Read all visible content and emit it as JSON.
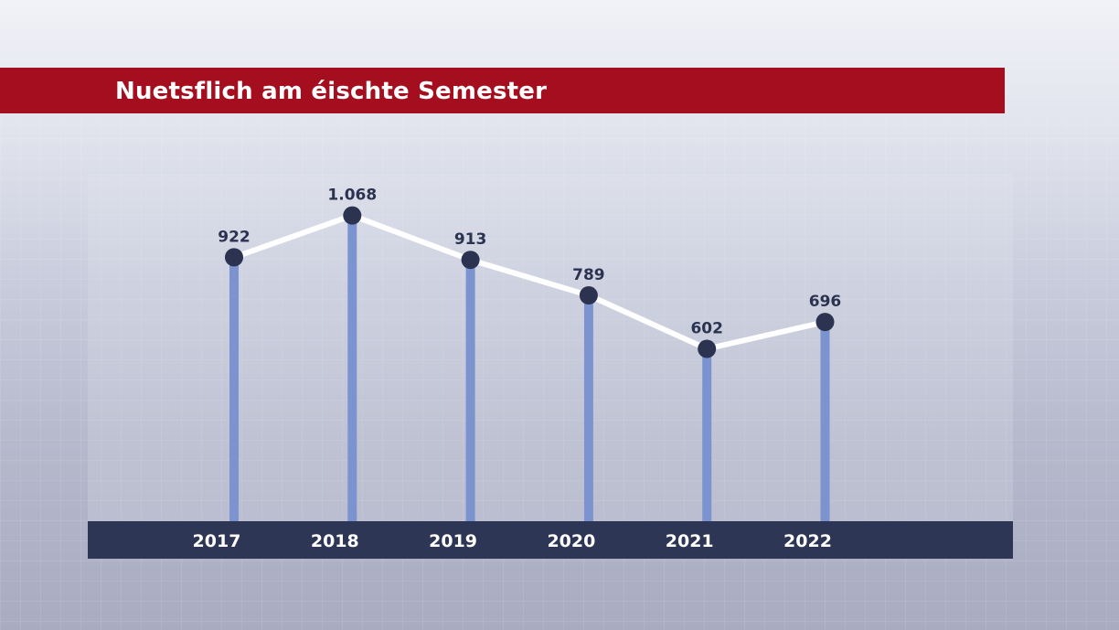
{
  "title": "Nuetsflich am éischte Semester",
  "colors": {
    "title_bar": "#a50e1f",
    "axis_bar": "#2e3655",
    "bar": "#7b93cf",
    "line": "#ffffff",
    "marker": "#2b3350"
  },
  "chart_data": {
    "type": "line",
    "categories": [
      "2017",
      "2018",
      "2019",
      "2020",
      "2021",
      "2022"
    ],
    "values": [
      922,
      1068,
      913,
      789,
      602,
      696
    ],
    "value_labels": [
      "922",
      "1.068",
      "913",
      "789",
      "602",
      "696"
    ],
    "title": "Nuetsflich am éischte Semester",
    "xlabel": "",
    "ylabel": "",
    "ylim": [
      0,
      1150
    ],
    "grid": false,
    "legend": "none",
    "style": "line with vertical drop bars and dot markers"
  }
}
